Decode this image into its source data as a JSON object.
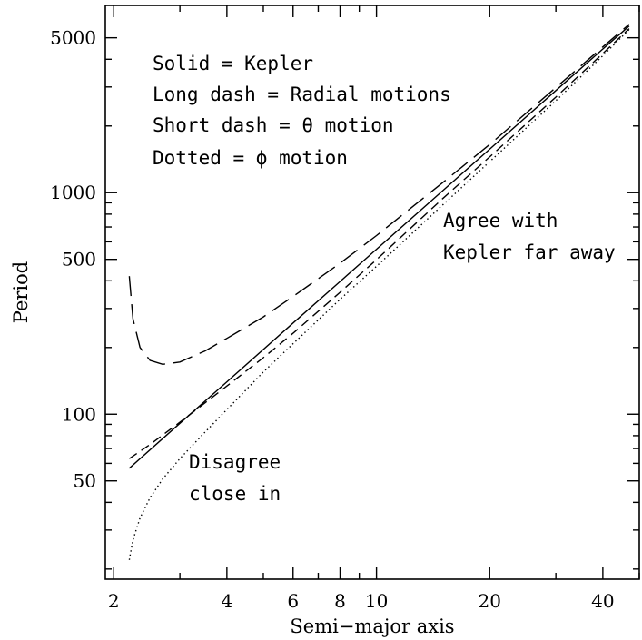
{
  "chart_data": {
    "type": "line",
    "xlabel": "Semi−major axis",
    "ylabel": "Period",
    "x_scale": "log",
    "y_scale": "log",
    "xlim": [
      1.9,
      50
    ],
    "ylim": [
      18,
      7000
    ],
    "grid": false,
    "x_ticks_major": [
      2,
      4,
      6,
      8,
      10,
      20,
      40
    ],
    "x_ticks_minor": [
      3,
      5,
      7,
      9,
      30,
      50
    ],
    "y_ticks_major": [
      50,
      100,
      500,
      1000,
      5000
    ],
    "y_ticks_minor": [
      20,
      30,
      40,
      60,
      70,
      80,
      90,
      200,
      300,
      400,
      600,
      700,
      800,
      900,
      2000,
      3000,
      4000
    ],
    "legend_lines": [
      "Solid = Kepler",
      "Long dash = Radial motions",
      "Short dash = θ motion",
      "Dotted = ϕ motion"
    ],
    "annotations": [
      {
        "lines": [
          "Agree with",
          "Kepler far away"
        ]
      },
      {
        "lines": [
          "Disagree",
          "close in"
        ]
      }
    ],
    "series": [
      {
        "style": "solid",
        "x": [
          2.2,
          3,
          4,
          6,
          8,
          10,
          15,
          20,
          30,
          40,
          47
        ],
        "y": [
          57,
          91,
          140,
          258,
          397,
          555,
          1020,
          1570,
          2890,
          4450,
          5650
        ]
      },
      {
        "style": "long-dash",
        "x": [
          2.2,
          2.25,
          2.35,
          2.5,
          2.7,
          3,
          3.5,
          4,
          5,
          6,
          8,
          10,
          15,
          20,
          30,
          40,
          47
        ],
        "y": [
          420,
          270,
          200,
          175,
          168,
          172,
          193,
          220,
          275,
          340,
          480,
          640,
          1110,
          1650,
          2980,
          4550,
          5750
        ]
      },
      {
        "style": "short-dash",
        "x": [
          2.2,
          2.5,
          3,
          4,
          5,
          6,
          8,
          10,
          15,
          20,
          30,
          40,
          47
        ],
        "y": [
          63,
          73,
          92,
          134,
          180,
          232,
          355,
          498,
          940,
          1450,
          2700,
          4250,
          5500
        ]
      },
      {
        "style": "dotted",
        "x": [
          2.2,
          2.25,
          2.35,
          2.5,
          2.7,
          3,
          3.5,
          4,
          5,
          6,
          8,
          10,
          15,
          20,
          30,
          40,
          47
        ],
        "y": [
          22,
          27,
          34,
          42,
          51,
          63,
          83,
          105,
          155,
          208,
          330,
          465,
          880,
          1380,
          2600,
          4150,
          5450
        ]
      }
    ]
  }
}
